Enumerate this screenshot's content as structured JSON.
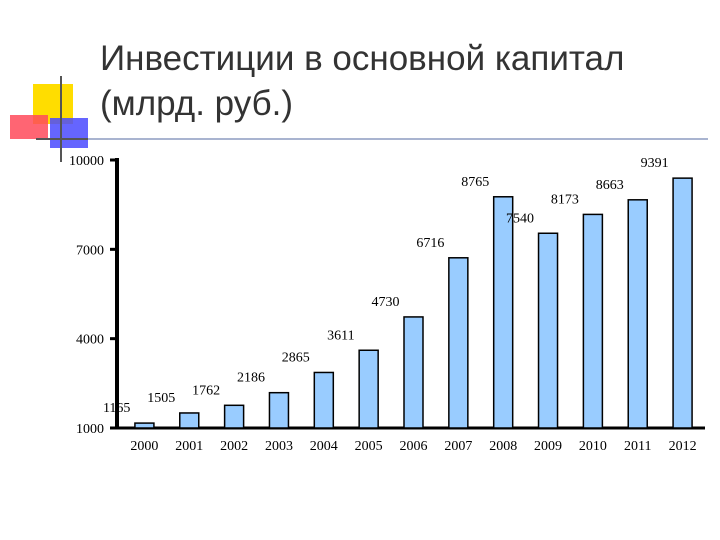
{
  "title": {
    "line1": "Инвестиции в основной капитал",
    "line2": "(млрд. руб.)"
  },
  "chart_data": {
    "type": "bar",
    "title": "Инвестиции в основной капитал (млрд. руб.)",
    "categories": [
      "2000",
      "2001",
      "2002",
      "2003",
      "2004",
      "2005",
      "2006",
      "2007",
      "2008",
      "2009",
      "2010",
      "2011",
      "2012"
    ],
    "values": [
      1165,
      1505,
      1762,
      2186,
      2865,
      3611,
      4730,
      6716,
      8765,
      7540,
      8173,
      8663,
      9391
    ],
    "data_labels": [
      "1165",
      "1505",
      "1762",
      "2186",
      "2865",
      "3611",
      "4730",
      "6716",
      "8765",
      "7540",
      "8173",
      "8663",
      "9391"
    ],
    "yticks": [
      1000,
      4000,
      7000,
      10000
    ],
    "ytick_labels": [
      "1000",
      "4000",
      "7000",
      "10000"
    ],
    "ylim": [
      1000,
      10000
    ],
    "bar_fill": "#99ccff",
    "bar_stroke": "#000000",
    "grid": false,
    "legend": false
  },
  "colors": {
    "deco_yellow": "#ffdd00",
    "deco_red": "#ff3333",
    "deco_blue": "#3333ff",
    "title_rule": "#6b7fb0"
  }
}
